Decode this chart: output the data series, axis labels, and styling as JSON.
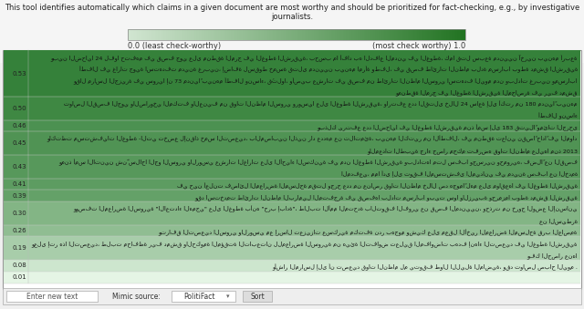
{
  "title_text": "This tool identifies automatically which claims in a given document are most worthy and should be prioritized for fact-checking, e.g., by investigative\njournalists.",
  "gradient_label_left": "0.0 (least check-worthy)",
  "gradient_label_right": "(most check worthy) 1.0",
  "scores": [
    0.53,
    0.5,
    0.46,
    0.45,
    0.43,
    0.41,
    0.39,
    0.3,
    0.26,
    0.19,
    0.08,
    0.01
  ],
  "row_line_counts": [
    4,
    2,
    1,
    2,
    2,
    1,
    1,
    2,
    1,
    2,
    1,
    1
  ],
  "background_color": "#f0f0f0",
  "box_border_color": "#999999",
  "score_color": "#333333",
  "footer_bg": "#e8e8e8",
  "footer_border": "#aaaaaa"
}
